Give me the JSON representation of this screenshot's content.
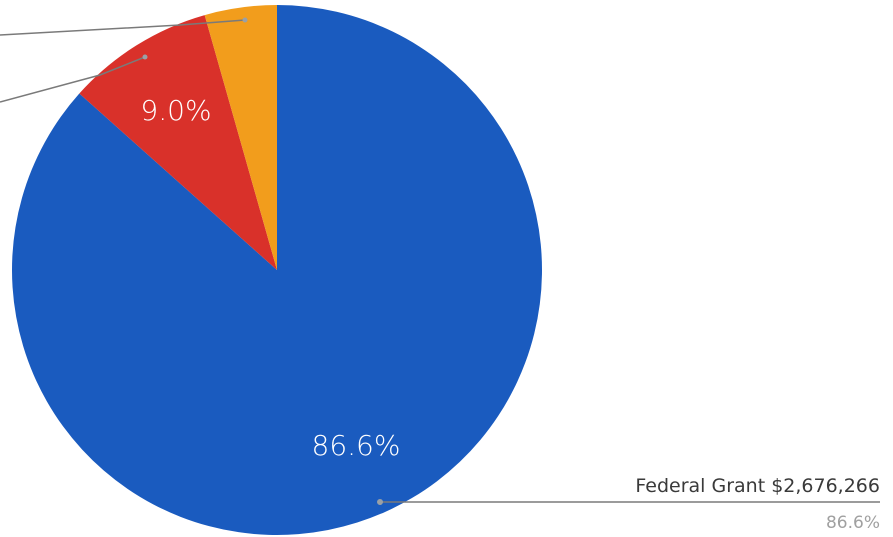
{
  "chart_data": {
    "type": "pie",
    "slices": [
      {
        "label": "Federal Grant",
        "amount": "$2,676,266",
        "percent": 86.6,
        "percent_label": "86.6%",
        "color": "#1a5bbf"
      },
      {
        "label": "",
        "amount": "",
        "percent": 9.0,
        "percent_label": "9.0%",
        "color": "#d9312a"
      },
      {
        "label": "",
        "amount": "",
        "percent": 4.4,
        "percent_label": "",
        "color": "#f29d1c"
      }
    ],
    "callout": {
      "title": "Federal Grant $2,676,266",
      "subtitle": "86.6%"
    },
    "start_angle": "12 o'clock",
    "direction": "clockwise",
    "legend": "callouts"
  }
}
